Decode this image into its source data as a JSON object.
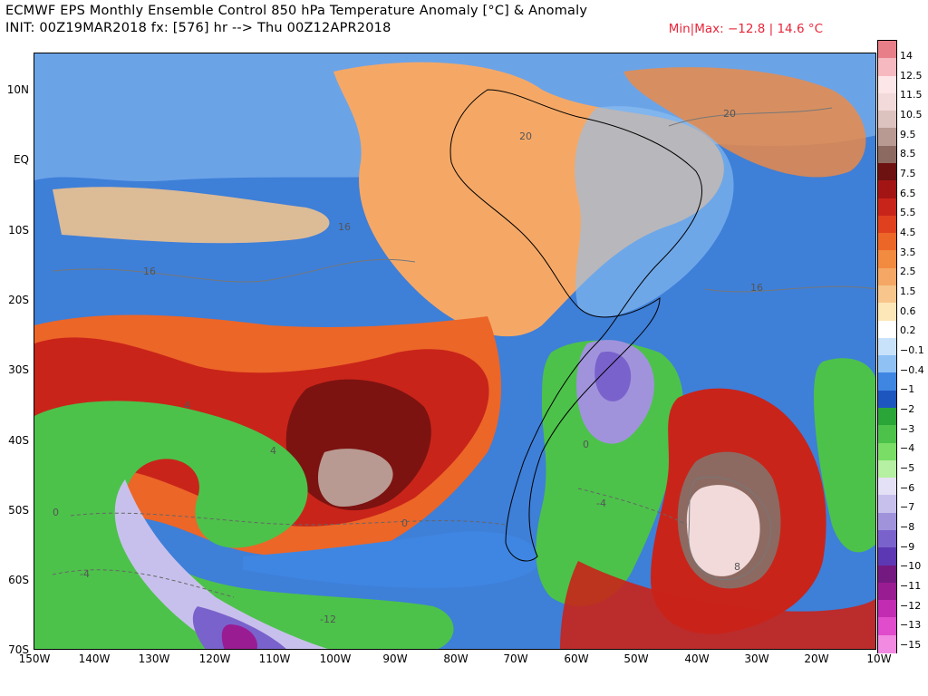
{
  "header": {
    "title": "ECMWF EPS Monthly Ensemble Control 850 hPa Temperature Anomaly [°C] & Anomaly",
    "init_line": "INIT: 00Z19MAR2018 fx: [576] hr --> Thu 00Z12APR2018",
    "minmax": "Min|Max: −12.8 | 14.6 °C"
  },
  "map": {
    "lat_labels": [
      "10N",
      "EQ",
      "10S",
      "20S",
      "30S",
      "40S",
      "50S",
      "60S",
      "70S"
    ],
    "lon_labels": [
      "150W",
      "140W",
      "130W",
      "120W",
      "110W",
      "100W",
      "90W",
      "80W",
      "70W",
      "60W",
      "50W",
      "40W",
      "30W",
      "20W",
      "10W"
    ],
    "contour_labels": [
      "20",
      "20",
      "16",
      "16",
      "16",
      "0",
      "0",
      "0",
      "-4",
      "-4",
      "4",
      "-12",
      "8",
      "4"
    ]
  },
  "colorbar": {
    "labels": [
      "14",
      "12.5",
      "11.5",
      "10.5",
      "9.5",
      "8.5",
      "7.5",
      "6.5",
      "5.5",
      "4.5",
      "3.5",
      "2.5",
      "1.5",
      "0.6",
      "0.2",
      "−0.1",
      "−0.4",
      "−1",
      "−2",
      "−3",
      "−4",
      "−5",
      "−6",
      "−7",
      "−8",
      "−9",
      "−10",
      "−11",
      "−12",
      "−13",
      "−15"
    ],
    "colors": [
      "#e87f88",
      "#f6b9bf",
      "#fde6e8",
      "#f2dada",
      "#dcc3c0",
      "#b89a92",
      "#8c6a62",
      "#6e1111",
      "#a31515",
      "#c9241a",
      "#e0401e",
      "#ec6628",
      "#f28a40",
      "#f5a866",
      "#f8c68c",
      "#fde7b8",
      "#ffffff",
      "#c9e2fb",
      "#8fc1f4",
      "#3f86e2",
      "#1e56c0",
      "#2aa638",
      "#4cc24a",
      "#79dd66",
      "#b6f0a2",
      "#e4e0f6",
      "#c8c0ec",
      "#a093dc",
      "#7a62cc",
      "#5d38b4",
      "#731980",
      "#9a1c92",
      "#c22cb2",
      "#e04ccc",
      "#f18ae0"
    ]
  }
}
